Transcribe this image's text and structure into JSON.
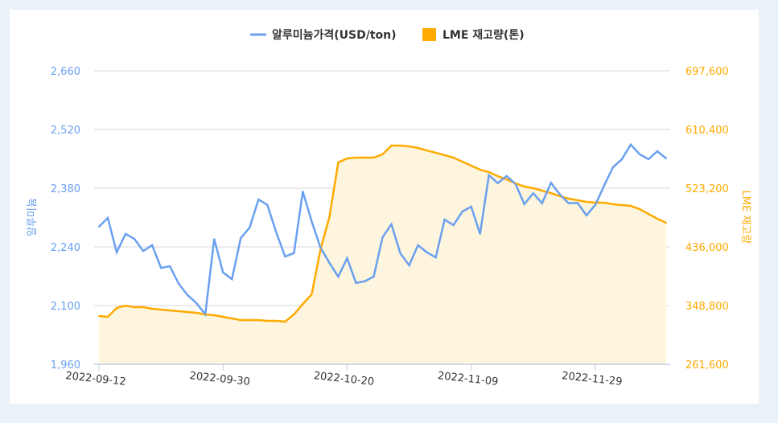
{
  "chart_data": {
    "type": "line",
    "legend": [
      {
        "name": "알루미늄가격(USD/ton)",
        "color": "#6aa0f0",
        "marker": "line"
      },
      {
        "name": "LME 재고량(톤)",
        "color": "#ffaa00",
        "marker": "square"
      }
    ],
    "legend_position": "top",
    "grid": true,
    "y_left": {
      "label": "알루미늄",
      "range": [
        1960,
        2660
      ],
      "ticks": [
        "1,960",
        "2,100",
        "2,240",
        "2,380",
        "2,520",
        "2,660"
      ],
      "tick_values": [
        1960,
        2100,
        2240,
        2380,
        2520,
        2660
      ],
      "color": "#6aa0f0"
    },
    "y_right": {
      "label": "LME 재고량",
      "range": [
        261600,
        697600
      ],
      "ticks": [
        "261,600",
        "348,800",
        "436,000",
        "523,200",
        "610,400",
        "697,600"
      ],
      "tick_values": [
        261600,
        348800,
        436000,
        523200,
        610400,
        697600
      ],
      "color": "#ffaa00"
    },
    "x_ticks": [
      "2022-09-12",
      "2022-09-30",
      "2022-10-20",
      "2022-11-09",
      "2022-11-29"
    ],
    "x": [
      "2022-09-12",
      "2022-09-13",
      "2022-09-14",
      "2022-09-15",
      "2022-09-16",
      "2022-09-19",
      "2022-09-20",
      "2022-09-21",
      "2022-09-22",
      "2022-09-23",
      "2022-09-26",
      "2022-09-27",
      "2022-09-28",
      "2022-09-29",
      "2022-09-30",
      "2022-10-03",
      "2022-10-04",
      "2022-10-05",
      "2022-10-06",
      "2022-10-07",
      "2022-10-10",
      "2022-10-11",
      "2022-10-12",
      "2022-10-13",
      "2022-10-14",
      "2022-10-17",
      "2022-10-18",
      "2022-10-19",
      "2022-10-20",
      "2022-10-21",
      "2022-10-24",
      "2022-10-25",
      "2022-10-26",
      "2022-10-27",
      "2022-10-28",
      "2022-10-31",
      "2022-11-01",
      "2022-11-02",
      "2022-11-03",
      "2022-11-04",
      "2022-11-07",
      "2022-11-08",
      "2022-11-09",
      "2022-11-10",
      "2022-11-11",
      "2022-11-14",
      "2022-11-15",
      "2022-11-16",
      "2022-11-17",
      "2022-11-18",
      "2022-11-21",
      "2022-11-22",
      "2022-11-23",
      "2022-11-24",
      "2022-11-25",
      "2022-11-28",
      "2022-11-29",
      "2022-11-30",
      "2022-12-01",
      "2022-12-02",
      "2022-12-05",
      "2022-12-06",
      "2022-12-07",
      "2022-12-08",
      "2022-12-09"
    ],
    "series": [
      {
        "name": "알루미늄가격(USD/ton)",
        "axis": "left",
        "type": "line",
        "color": "#6aa0f0",
        "values": [
          2288,
          2309,
          2227,
          2271,
          2259,
          2230,
          2244,
          2190,
          2194,
          2152,
          2125,
          2106,
          2079,
          2259,
          2179,
          2163,
          2261,
          2286,
          2353,
          2340,
          2275,
          2217,
          2225,
          2372,
          2301,
          2238,
          2202,
          2169,
          2213,
          2154,
          2158,
          2169,
          2263,
          2294,
          2225,
          2196,
          2244,
          2227,
          2215,
          2305,
          2292,
          2324,
          2336,
          2271,
          2411,
          2392,
          2409,
          2390,
          2342,
          2368,
          2344,
          2393,
          2365,
          2344,
          2345,
          2315,
          2340,
          2386,
          2430,
          2449,
          2484,
          2461,
          2449,
          2468,
          2451
        ]
      },
      {
        "name": "LME 재고량(톤)",
        "axis": "right",
        "type": "area",
        "color": "#ffaa00",
        "fill": "#fdf5dd",
        "values": [
          333300,
          332100,
          345200,
          348800,
          346400,
          346400,
          344000,
          342800,
          341600,
          340400,
          339200,
          338000,
          335700,
          334500,
          332100,
          329700,
          327300,
          327300,
          327300,
          326100,
          326100,
          324900,
          335700,
          351200,
          365500,
          432400,
          480200,
          561400,
          567400,
          568600,
          568600,
          568600,
          573400,
          586500,
          586500,
          585300,
          582900,
          579300,
          575800,
          572200,
          568600,
          562600,
          556600,
          550700,
          547100,
          541100,
          536300,
          530400,
          525600,
          523200,
          519600,
          516000,
          511300,
          507700,
          505300,
          502900,
          501700,
          501700,
          499300,
          498100,
          496900,
          492100,
          485000,
          477800,
          471800
        ]
      }
    ]
  }
}
